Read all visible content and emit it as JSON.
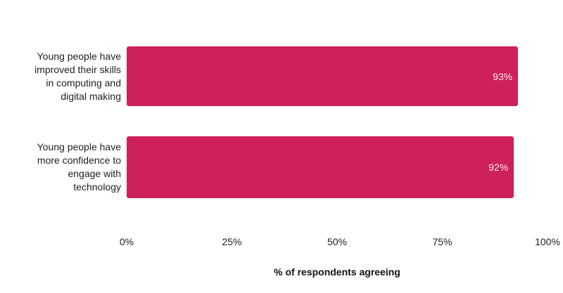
{
  "chart_data": {
    "type": "bar",
    "orientation": "horizontal",
    "title": "",
    "xlabel": "% of respondents agreeing",
    "ylabel": "",
    "xlim": [
      0,
      100
    ],
    "grid": false,
    "legend": false,
    "categories": [
      "Young people have improved their skills in computing and digital making",
      "Young people have more confidence to engage with technology"
    ],
    "display_labels": [
      "Young people have\nimproved their skills\nin computing and\ndigital making",
      "Young people have\nmore confidence to\nengage with\ntechnology"
    ],
    "values": [
      93,
      92
    ],
    "value_labels": [
      "93%",
      "92%"
    ],
    "x_ticks": [
      "0%",
      "25%",
      "50%",
      "75%",
      "100%"
    ],
    "bar_color": "#ce2159",
    "value_label_color": "#f2eded",
    "text_color": "#212121"
  }
}
